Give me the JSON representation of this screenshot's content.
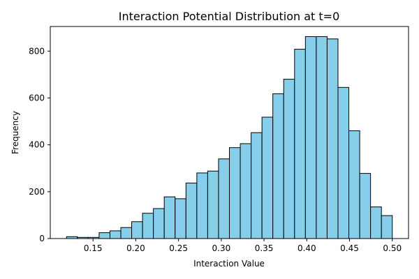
{
  "chart_data": {
    "type": "bar",
    "title": "Interaction Potential Distribution at t=0",
    "xlabel": "Interaction Value",
    "ylabel": "Frequency",
    "bar_color": "#87ceeb",
    "edge_color": "#000000",
    "xlim": [
      0.1,
      0.519
    ],
    "ylim": [
      0,
      905
    ],
    "xticks": [
      0.15,
      0.2,
      0.25,
      0.3,
      0.35,
      0.4,
      0.45,
      0.5
    ],
    "xtick_labels": [
      "0.15",
      "0.20",
      "0.25",
      "0.30",
      "0.35",
      "0.40",
      "0.45",
      "0.50"
    ],
    "yticks": [
      0,
      200,
      400,
      600,
      800
    ],
    "ytick_labels": [
      "0",
      "200",
      "400",
      "600",
      "800"
    ],
    "bin_edges": [
      0.119,
      0.1317,
      0.1444,
      0.1571,
      0.1698,
      0.1825,
      0.1952,
      0.2079,
      0.2206,
      0.2333,
      0.246,
      0.2587,
      0.2714,
      0.2841,
      0.2968,
      0.3095,
      0.3222,
      0.3349,
      0.3476,
      0.3603,
      0.373,
      0.3857,
      0.3984,
      0.4111,
      0.4238,
      0.4365,
      0.4492,
      0.4619,
      0.4746,
      0.4873,
      0.5
    ],
    "values": [
      8,
      5,
      5,
      25,
      33,
      47,
      72,
      108,
      128,
      178,
      170,
      237,
      280,
      288,
      340,
      388,
      405,
      452,
      518,
      618,
      680,
      808,
      862,
      862,
      852,
      645,
      460,
      278,
      135,
      98
    ]
  }
}
